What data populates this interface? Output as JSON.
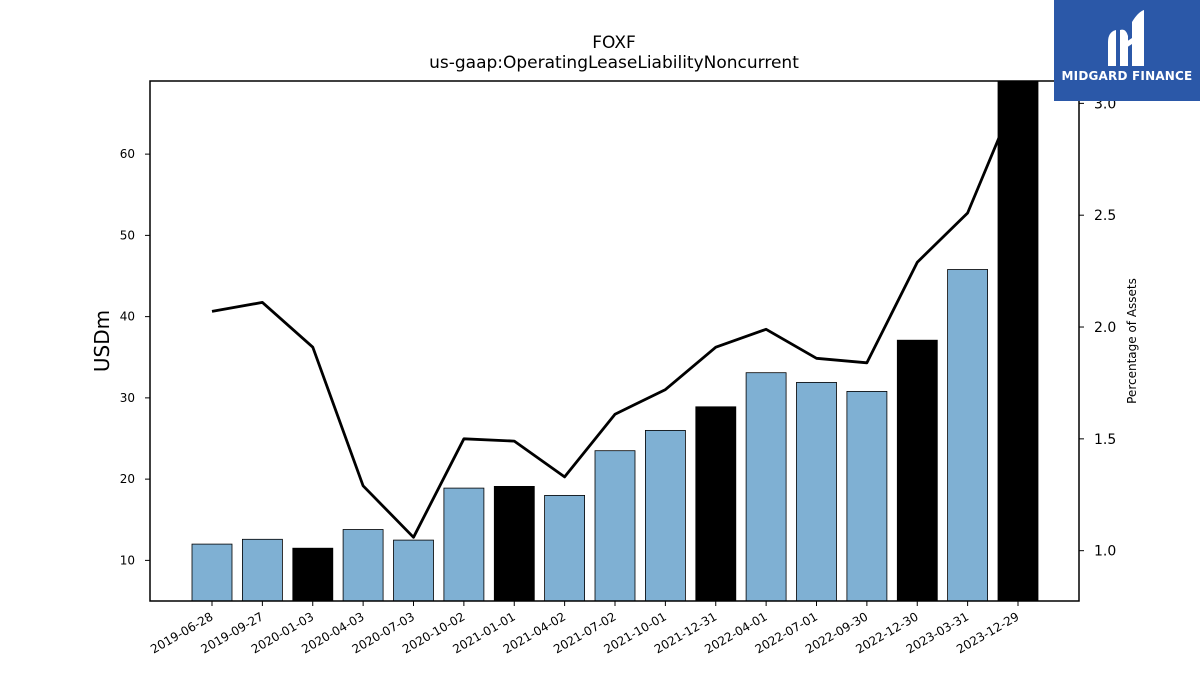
{
  "chart_data": {
    "type": "bar",
    "title": "FOXF",
    "subtitle": "us-gaap:OperatingLeaseLiabilityNoncurrent",
    "ylabel": "USDm",
    "ylabel_right": "Percentage of Assets",
    "ylim": [
      5,
      69
    ],
    "ylim_right": [
      0.775,
      3.1
    ],
    "yticks": [
      10,
      20,
      30,
      40,
      50,
      60
    ],
    "yticks_right": [
      1.0,
      1.5,
      2.0,
      2.5,
      3.0
    ],
    "categories": [
      "2019-06-28",
      "2019-09-27",
      "2020-01-03",
      "2020-04-03",
      "2020-07-03",
      "2020-10-02",
      "2021-01-01",
      "2021-04-02",
      "2021-07-02",
      "2021-10-01",
      "2021-12-31",
      "2022-04-01",
      "2022-07-01",
      "2022-09-30",
      "2022-12-30",
      "2023-03-31",
      "2023-12-29"
    ],
    "values": [
      12.0,
      12.6,
      11.5,
      13.8,
      12.5,
      18.9,
      19.1,
      18.0,
      23.5,
      26.0,
      28.9,
      33.1,
      31.9,
      30.8,
      37.1,
      45.8,
      69.5
    ],
    "highlight": [
      false,
      false,
      true,
      false,
      false,
      false,
      true,
      false,
      false,
      false,
      true,
      false,
      false,
      false,
      true,
      false,
      true
    ],
    "line_series": {
      "axis": "right",
      "values": [
        2.07,
        2.11,
        1.91,
        1.29,
        1.06,
        1.5,
        1.49,
        1.33,
        1.61,
        1.72,
        1.91,
        1.99,
        1.86,
        1.84,
        2.29,
        2.51,
        3.05
      ]
    },
    "colors": {
      "bar": "#7fb0d3",
      "highlight": "#000000",
      "line": "#000000"
    }
  },
  "logo": {
    "text": "MIDGARD FINANCE"
  }
}
